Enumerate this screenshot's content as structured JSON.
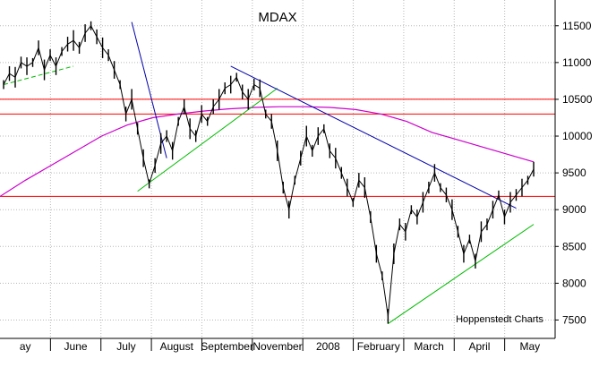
{
  "chart_data": {
    "type": "line",
    "title": "MDAX",
    "credit": "Hoppenstedt Charts",
    "ylim": [
      7250,
      11850
    ],
    "yticks": [
      7500,
      8000,
      8500,
      9000,
      9500,
      10000,
      10500,
      11000,
      11500
    ],
    "ytick_labels": [
      "7500",
      "8000",
      "8500",
      "9000",
      "9500",
      "10000",
      "10500",
      "11000",
      "11500"
    ],
    "xlabels": [
      "ay",
      "June",
      "July",
      "August",
      "September",
      "November",
      "2008",
      "February",
      "March",
      "April",
      "May"
    ],
    "grid": true,
    "colors": {
      "price": "#000000",
      "moving_average": "#cc00cc",
      "support": "#ff0000",
      "downtrend": "#0000aa",
      "uptrend": "#00bb00",
      "grid": "#b8b8b8"
    },
    "support_levels": [
      10500,
      10300,
      9180
    ],
    "series": [
      {
        "role": "price",
        "values": [
          10700,
          10850,
          10800,
          11000,
          10950,
          11000,
          11200,
          10900,
          11100,
          10950,
          11150,
          11250,
          11300,
          11200,
          11400,
          11500,
          11350,
          11200,
          11100,
          10900,
          10700,
          10300,
          10500,
          10100,
          9700,
          9350,
          9600,
          9900,
          10000,
          9800,
          10200,
          10400,
          10100,
          10000,
          10300,
          10200,
          10400,
          10500,
          10650,
          10700,
          10800,
          10600,
          10500,
          10700,
          10650,
          10300,
          10200,
          9800,
          9300,
          9000,
          9400,
          9700,
          10000,
          9800,
          10000,
          10100,
          9800,
          9700,
          9500,
          9300,
          9100,
          9400,
          9300,
          8900,
          8400,
          8100,
          7550,
          8400,
          8800,
          8700,
          9000,
          8900,
          9100,
          9300,
          9500,
          9300,
          9200,
          9000,
          8700,
          8400,
          8600,
          8300,
          8700,
          8800,
          9000,
          9200,
          8900,
          9100,
          9200,
          9300,
          9400,
          9550
        ]
      },
      {
        "role": "moving_average",
        "values": [
          9180,
          9400,
          9600,
          9800,
          10000,
          10150,
          10250,
          10300,
          10340,
          10370,
          10390,
          10400,
          10400,
          10390,
          10360,
          10300,
          10200,
          10050,
          9950,
          9850,
          9750,
          9650
        ]
      }
    ],
    "trendlines": [
      {
        "role": "uptrend-dashed",
        "from": [
          0,
          10700
        ],
        "to": [
          12,
          10950
        ]
      },
      {
        "role": "downtrend",
        "from": [
          22,
          11550
        ],
        "to": [
          28,
          9700
        ]
      },
      {
        "role": "uptrend",
        "from": [
          23,
          9250
        ],
        "to": [
          47,
          10650
        ]
      },
      {
        "role": "downtrend",
        "from": [
          39,
          10950
        ],
        "to": [
          88,
          9020
        ]
      },
      {
        "role": "uptrend",
        "from": [
          66,
          7450
        ],
        "to": [
          91,
          8800
        ]
      }
    ]
  }
}
